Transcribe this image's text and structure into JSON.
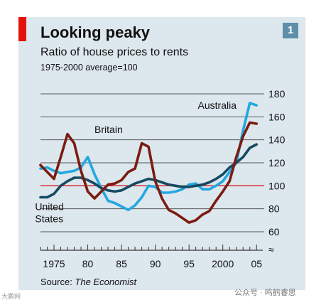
{
  "header": {
    "title": "Looking peaky",
    "subtitle": "Ratio of house prices to rents",
    "note": "1975-2000 average=100",
    "badge": "1"
  },
  "footer": {
    "source_prefix": "Source: ",
    "source_name": "The Economist"
  },
  "watermarks": {
    "left": "大鹏网",
    "right": "公众号 · 鸣鹤睿思"
  },
  "colors": {
    "panel": "#dde7ee",
    "accent_red": "#e3120b",
    "britain": "#7a1c10",
    "australia": "#22a8e0",
    "united_states": "#154b63",
    "gridline": "#555555",
    "baseline": "#d21a1a"
  },
  "chart_data": {
    "type": "line",
    "title": "Looking peaky",
    "subtitle": "Ratio of house prices to rents",
    "ylabel": "1975-2000 average=100",
    "xlim": [
      1973,
      2005.5
    ],
    "ylim": [
      60,
      180
    ],
    "x_ticks": [
      1975,
      1980,
      1985,
      1990,
      1995,
      2000,
      2005
    ],
    "x_tick_labels": [
      "1975",
      "80",
      "85",
      "90",
      "95",
      "2000",
      "05"
    ],
    "y_ticks": [
      60,
      80,
      100,
      120,
      140,
      160,
      180
    ],
    "y_tick_labels": [
      "60",
      "80",
      "100",
      "120",
      "140",
      "160",
      "180"
    ],
    "baseline": 100,
    "grid": true,
    "axis_break_symbol": "≈",
    "series": [
      {
        "name": "Britain",
        "color": "#7a1c10",
        "x": [
          1973,
          1974,
          1975,
          1976,
          1977,
          1978,
          1979,
          1980,
          1981,
          1982,
          1983,
          1984,
          1985,
          1986,
          1987,
          1988,
          1989,
          1990,
          1991,
          1992,
          1993,
          1994,
          1995,
          1996,
          1997,
          1998,
          1999,
          2000,
          2001,
          2002,
          2003,
          2004,
          2005
        ],
        "y": [
          118,
          112,
          106,
          125,
          145,
          137,
          113,
          95,
          89,
          95,
          101,
          102,
          105,
          112,
          115,
          137,
          134,
          104,
          89,
          79,
          76,
          72,
          68,
          70,
          75,
          78,
          87,
          95,
          104,
          125,
          143,
          155,
          154
        ]
      },
      {
        "name": "Australia",
        "color": "#22a8e0",
        "x": [
          1973,
          1974,
          1975,
          1976,
          1977,
          1978,
          1979,
          1980,
          1981,
          1982,
          1983,
          1984,
          1985,
          1986,
          1987,
          1988,
          1989,
          1990,
          1991,
          1992,
          1993,
          1994,
          1995,
          1996,
          1997,
          1998,
          1999,
          2000,
          2001,
          2002,
          2003,
          2004,
          2005
        ],
        "y": [
          115,
          116,
          113,
          111,
          112,
          113,
          116,
          125,
          110,
          98,
          87,
          85,
          82,
          79,
          83,
          90,
          100,
          99,
          94,
          94,
          95,
          97,
          101,
          102,
          97,
          97,
          100,
          104,
          112,
          120,
          148,
          172,
          170
        ]
      },
      {
        "name": "United States",
        "color": "#154b63",
        "x": [
          1973,
          1974,
          1975,
          1976,
          1977,
          1978,
          1979,
          1980,
          1981,
          1982,
          1983,
          1984,
          1985,
          1986,
          1987,
          1988,
          1989,
          1990,
          1991,
          1992,
          1993,
          1994,
          1995,
          1996,
          1997,
          1998,
          1999,
          2000,
          2001,
          2002,
          2003,
          2004,
          2005
        ],
        "y": [
          90,
          90,
          93,
          100,
          104,
          107,
          107,
          105,
          102,
          98,
          96,
          95,
          96,
          99,
          102,
          104,
          106,
          105,
          103,
          101,
          100,
          99,
          99,
          100,
          101,
          103,
          106,
          110,
          116,
          120,
          125,
          133,
          136
        ]
      }
    ],
    "series_labels": [
      {
        "series": "Britain",
        "text": "Britain",
        "x": 1981,
        "y": 146,
        "anchor": "start",
        "lines": [
          "Britain"
        ]
      },
      {
        "series": "Australia",
        "text": "Australia",
        "x": 1996.3,
        "y": 167,
        "anchor": "start",
        "lines": [
          "Australia"
        ]
      },
      {
        "series": "United States",
        "text": "United States",
        "x": 1972.2,
        "y": 79,
        "anchor": "start",
        "lines": [
          "United",
          "States"
        ]
      }
    ]
  }
}
